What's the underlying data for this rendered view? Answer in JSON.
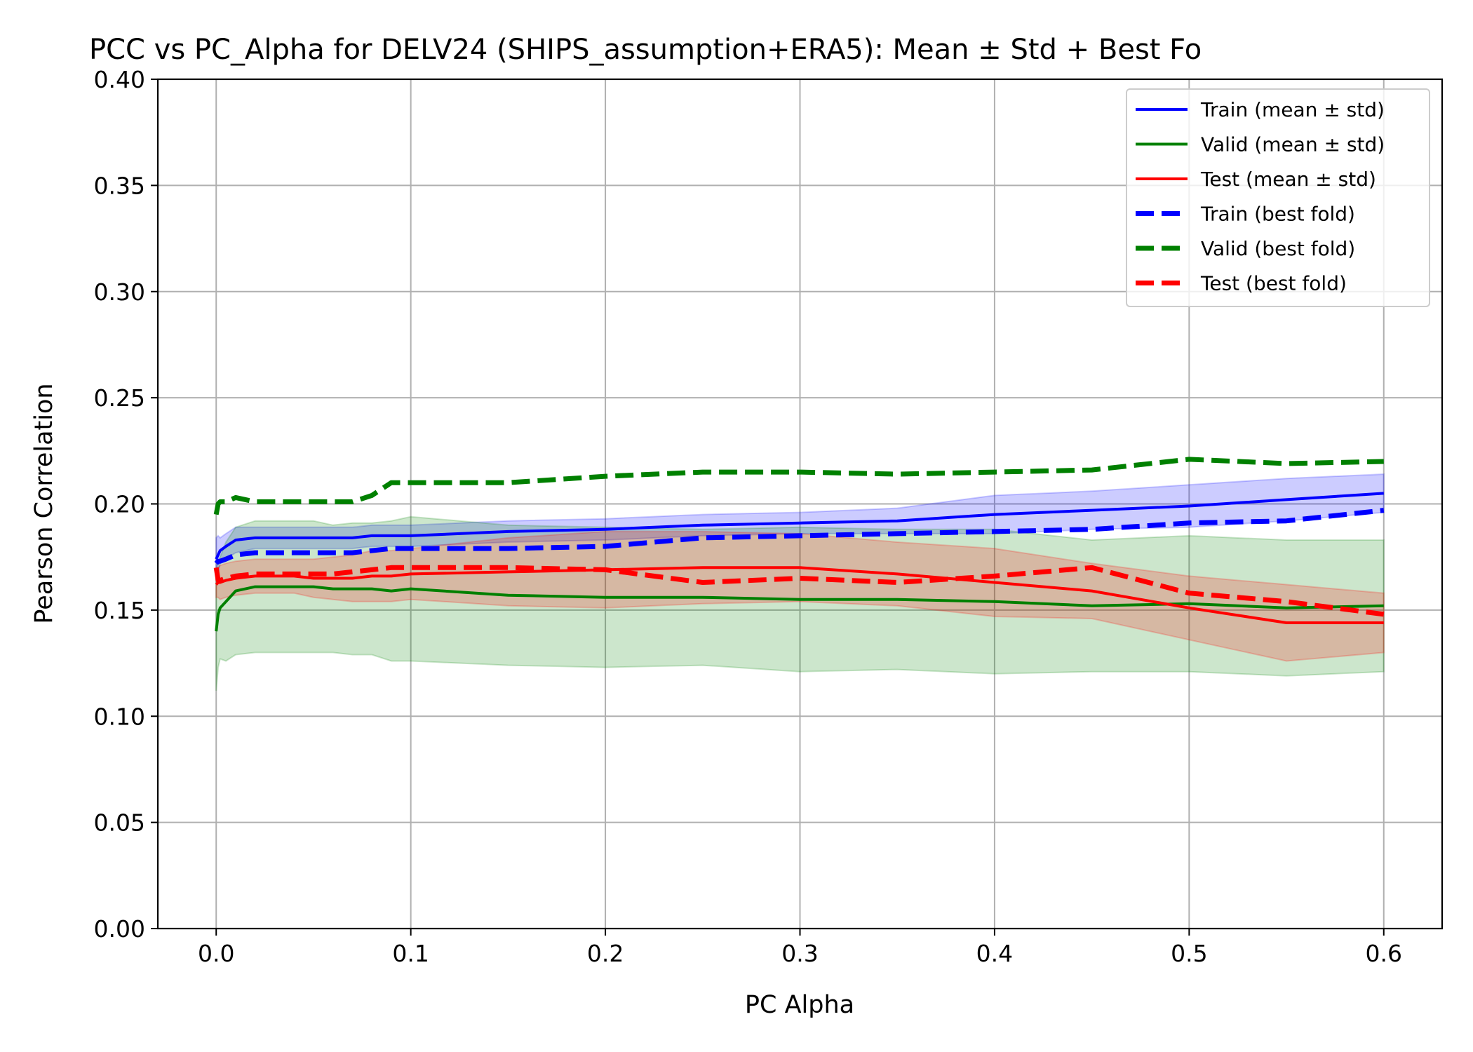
{
  "chart_data": {
    "type": "line",
    "title": "PCC vs PC_Alpha for DELV24 (SHIPS_assumption+ERA5): Mean ± Std + Best Fo",
    "xlabel": "PC Alpha",
    "ylabel": "Pearson Correlation",
    "xlim": [
      -0.03,
      0.63
    ],
    "ylim": [
      0.0,
      0.4
    ],
    "xticks": [
      "0.0",
      "0.1",
      "0.2",
      "0.3",
      "0.4",
      "0.5",
      "0.6"
    ],
    "yticks": [
      "0.00",
      "0.05",
      "0.10",
      "0.15",
      "0.20",
      "0.25",
      "0.30",
      "0.35",
      "0.40"
    ],
    "grid": true,
    "legend_position": "top-right",
    "x": [
      0.0,
      0.001,
      0.002,
      0.005,
      0.01,
      0.02,
      0.03,
      0.04,
      0.05,
      0.06,
      0.07,
      0.08,
      0.09,
      0.1,
      0.15,
      0.2,
      0.25,
      0.3,
      0.35,
      0.4,
      0.45,
      0.5,
      0.55,
      0.6
    ],
    "series": [
      {
        "name": "Train (mean ± std)",
        "style": "solid",
        "color": "#0000ff",
        "values": [
          0.174,
          0.176,
          0.178,
          0.18,
          0.183,
          0.184,
          0.184,
          0.184,
          0.184,
          0.184,
          0.184,
          0.185,
          0.185,
          0.185,
          0.187,
          0.188,
          0.19,
          0.191,
          0.192,
          0.195,
          0.197,
          0.199,
          0.202,
          0.205
        ],
        "std": [
          0.01,
          0.009,
          0.006,
          0.006,
          0.006,
          0.005,
          0.005,
          0.005,
          0.005,
          0.005,
          0.005,
          0.005,
          0.005,
          0.005,
          0.005,
          0.005,
          0.005,
          0.005,
          0.006,
          0.009,
          0.009,
          0.01,
          0.01,
          0.009
        ]
      },
      {
        "name": "Valid (mean ± std)",
        "style": "solid",
        "color": "#008000",
        "values": [
          0.14,
          0.148,
          0.151,
          0.154,
          0.159,
          0.161,
          0.161,
          0.161,
          0.161,
          0.16,
          0.16,
          0.16,
          0.159,
          0.16,
          0.157,
          0.156,
          0.156,
          0.155,
          0.155,
          0.154,
          0.152,
          0.153,
          0.151,
          0.152
        ],
        "std": [
          0.028,
          0.025,
          0.024,
          0.028,
          0.03,
          0.031,
          0.031,
          0.031,
          0.031,
          0.03,
          0.031,
          0.031,
          0.033,
          0.034,
          0.033,
          0.033,
          0.032,
          0.034,
          0.033,
          0.034,
          0.031,
          0.032,
          0.032,
          0.031
        ]
      },
      {
        "name": "Test (mean ± std)",
        "style": "solid",
        "color": "#ff0000",
        "values": [
          0.162,
          0.163,
          0.163,
          0.164,
          0.165,
          0.166,
          0.166,
          0.166,
          0.165,
          0.165,
          0.165,
          0.166,
          0.166,
          0.167,
          0.168,
          0.169,
          0.17,
          0.17,
          0.167,
          0.163,
          0.159,
          0.151,
          0.144,
          0.144
        ],
        "std": [
          0.006,
          0.007,
          0.008,
          0.008,
          0.008,
          0.008,
          0.008,
          0.008,
          0.009,
          0.01,
          0.011,
          0.012,
          0.012,
          0.012,
          0.016,
          0.018,
          0.017,
          0.016,
          0.015,
          0.016,
          0.013,
          0.015,
          0.018,
          0.014
        ]
      },
      {
        "name": "Train (best fold)",
        "style": "dashed",
        "color": "#0000ff",
        "values": [
          0.172,
          0.173,
          0.173,
          0.174,
          0.176,
          0.177,
          0.177,
          0.177,
          0.177,
          0.177,
          0.177,
          0.178,
          0.179,
          0.179,
          0.179,
          0.18,
          0.184,
          0.185,
          0.186,
          0.187,
          0.188,
          0.191,
          0.192,
          0.197
        ]
      },
      {
        "name": "Valid (best fold)",
        "style": "dashed",
        "color": "#008000",
        "values": [
          0.195,
          0.2,
          0.201,
          0.201,
          0.203,
          0.201,
          0.201,
          0.201,
          0.201,
          0.201,
          0.201,
          0.204,
          0.21,
          0.21,
          0.21,
          0.213,
          0.215,
          0.215,
          0.214,
          0.215,
          0.216,
          0.221,
          0.219,
          0.22
        ]
      },
      {
        "name": "Test (best fold)",
        "style": "dashed",
        "color": "#ff0000",
        "values": [
          0.17,
          0.164,
          0.164,
          0.165,
          0.166,
          0.167,
          0.167,
          0.167,
          0.167,
          0.167,
          0.168,
          0.169,
          0.17,
          0.17,
          0.17,
          0.169,
          0.163,
          0.165,
          0.163,
          0.166,
          0.17,
          0.158,
          0.154,
          0.148
        ]
      }
    ]
  }
}
